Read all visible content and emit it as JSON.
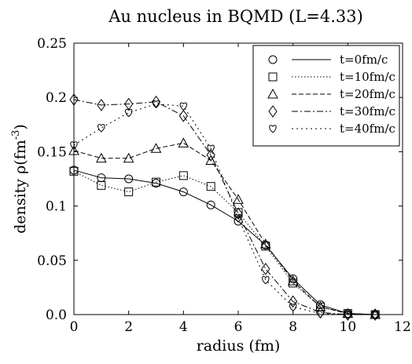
{
  "chart_data": {
    "type": "line",
    "title": "Au nucleus in BQMD (L=4.33)",
    "xlabel": "radius (fm)",
    "ylabel_prefix": "density ρ(fm",
    "ylabel_exp": "-3",
    "ylabel_suffix": ")",
    "xlim": [
      0,
      12
    ],
    "ylim": [
      0,
      0.25
    ],
    "xticks": [
      0,
      2,
      4,
      6,
      8,
      10,
      12
    ],
    "yticks": [
      0.0,
      0.05,
      0.1,
      0.15,
      0.2,
      0.25
    ],
    "xtick_labels": [
      "0",
      "2",
      "4",
      "6",
      "8",
      "10",
      "12"
    ],
    "ytick_labels": [
      "0.0",
      "0.05",
      "0.1",
      "0.15",
      "0.2",
      "0.25"
    ],
    "grid": false,
    "legend_position": "top-right",
    "x": [
      0,
      1,
      2,
      3,
      4,
      5,
      6,
      7,
      8,
      9,
      10,
      11
    ],
    "series": [
      {
        "name": "t=0fm/c",
        "marker": "circle",
        "dash": "none",
        "values": [
          0.133,
          0.126,
          0.125,
          0.121,
          0.113,
          0.101,
          0.086,
          0.064,
          0.033,
          0.009,
          0.001,
          0.0
        ]
      },
      {
        "name": "t=10fm/c",
        "marker": "square",
        "dash": "1.5,2.5",
        "values": [
          0.132,
          0.119,
          0.113,
          0.122,
          0.128,
          0.118,
          0.094,
          0.063,
          0.029,
          0.007,
          0.001,
          0.0
        ]
      },
      {
        "name": "t=20fm/c",
        "marker": "triangle",
        "dash": "6,3",
        "values": [
          0.151,
          0.144,
          0.144,
          0.153,
          0.158,
          0.142,
          0.106,
          0.065,
          0.031,
          0.007,
          0.001,
          0.0
        ]
      },
      {
        "name": "t=30fm/c",
        "marker": "diamond",
        "dash": "8,3,2,3",
        "values": [
          0.198,
          0.193,
          0.194,
          0.196,
          0.183,
          0.147,
          0.093,
          0.042,
          0.012,
          0.002,
          0.0,
          0.0
        ]
      },
      {
        "name": "t=40fm/c",
        "marker": "heart",
        "dash": "2,4",
        "values": [
          0.156,
          0.172,
          0.186,
          0.194,
          0.192,
          0.153,
          0.089,
          0.032,
          0.007,
          0.001,
          0.0,
          0.0
        ]
      }
    ]
  }
}
